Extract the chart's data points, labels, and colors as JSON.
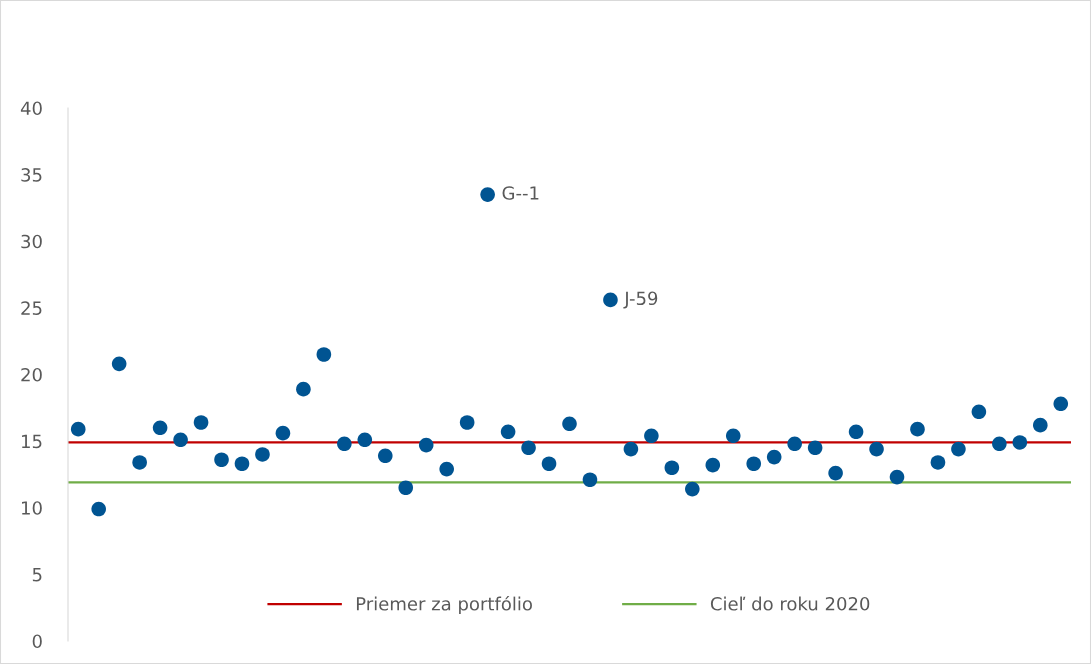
{
  "chart_data": {
    "type": "scatter",
    "categories": [
      null,
      null,
      null,
      null,
      null,
      null,
      null,
      null,
      null,
      null,
      null,
      null,
      null,
      null,
      null,
      null,
      null,
      null,
      null,
      null,
      null,
      null,
      null,
      null,
      null,
      null,
      null,
      null,
      null,
      null,
      null,
      null,
      null,
      null,
      null,
      null,
      null,
      null,
      null,
      null,
      null,
      null,
      null,
      null,
      null,
      null,
      null,
      null,
      null
    ],
    "values": [
      15.9,
      9.9,
      20.8,
      13.4,
      16.0,
      15.1,
      16.4,
      13.6,
      13.3,
      14.0,
      15.6,
      18.9,
      21.5,
      14.8,
      15.1,
      13.9,
      11.5,
      14.7,
      12.9,
      16.4,
      33.5,
      15.7,
      14.5,
      13.3,
      16.3,
      12.1,
      25.6,
      14.4,
      15.4,
      13.0,
      11.4,
      13.2,
      15.4,
      13.3,
      13.8,
      14.8,
      14.5,
      12.6,
      15.7,
      14.4,
      12.3,
      15.9,
      13.4,
      14.4,
      17.2,
      14.8,
      14.9,
      16.2,
      17.8
    ],
    "value_labels": [
      null,
      null,
      null,
      null,
      null,
      null,
      null,
      null,
      null,
      null,
      null,
      null,
      null,
      null,
      null,
      null,
      null,
      null,
      null,
      null,
      "G--1",
      null,
      null,
      null,
      null,
      null,
      "J-59",
      null,
      null,
      null,
      null,
      null,
      null,
      null,
      null,
      null,
      null,
      null,
      null,
      null,
      null,
      null,
      null,
      null,
      null,
      null,
      null,
      null,
      null
    ],
    "color": "#005492",
    "marker": "circle",
    "ylim": [
      0,
      40
    ],
    "yticks": [
      0,
      5,
      10,
      15,
      20,
      25,
      30,
      35,
      40
    ],
    "ref_lines": [
      {
        "axis": "y",
        "value": 14.9,
        "label": "Priemer za portfólio",
        "color": "#c00000"
      },
      {
        "axis": "y",
        "value": 11.9,
        "label": "Cieľ do roku 2020",
        "color": "#70ad47"
      }
    ],
    "legend": "bottom",
    "grid": false,
    "tick_labels": "y"
  }
}
